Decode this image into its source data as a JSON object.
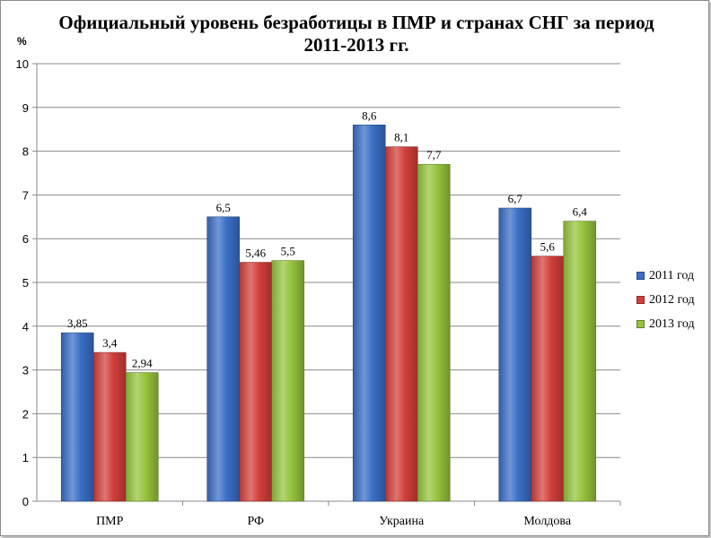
{
  "chart_data": {
    "type": "bar",
    "title": [
      "Официальный уровень безработицы в ПМР и странах СНГ за период",
      "2011-2013 гг."
    ],
    "ylabel": "%",
    "xlabel": "",
    "ylim": [
      0,
      10
    ],
    "yticks": [
      "0",
      "1",
      "2",
      "3",
      "4",
      "5",
      "6",
      "7",
      "8",
      "9",
      "10"
    ],
    "categories": [
      "ПМР",
      "РФ",
      "Украина",
      "Молдова"
    ],
    "series": [
      {
        "name": "2011 год",
        "color": "#3a6fc6",
        "values": [
          3.85,
          6.5,
          8.6,
          6.7
        ],
        "labels": [
          "3,85",
          "6,5",
          "8,6",
          "6,7"
        ]
      },
      {
        "name": "2012 год",
        "color": "#d23f3b",
        "values": [
          3.4,
          5.46,
          8.1,
          5.6
        ],
        "labels": [
          "3,4",
          "5,46",
          "8,1",
          "5,6"
        ]
      },
      {
        "name": "2013 год",
        "color": "#96c43c",
        "values": [
          2.94,
          5.5,
          7.7,
          6.4
        ],
        "labels": [
          "2,94",
          "5,5",
          "7,7",
          "6,4"
        ]
      }
    ],
    "grid": true,
    "legend_position": "right"
  }
}
